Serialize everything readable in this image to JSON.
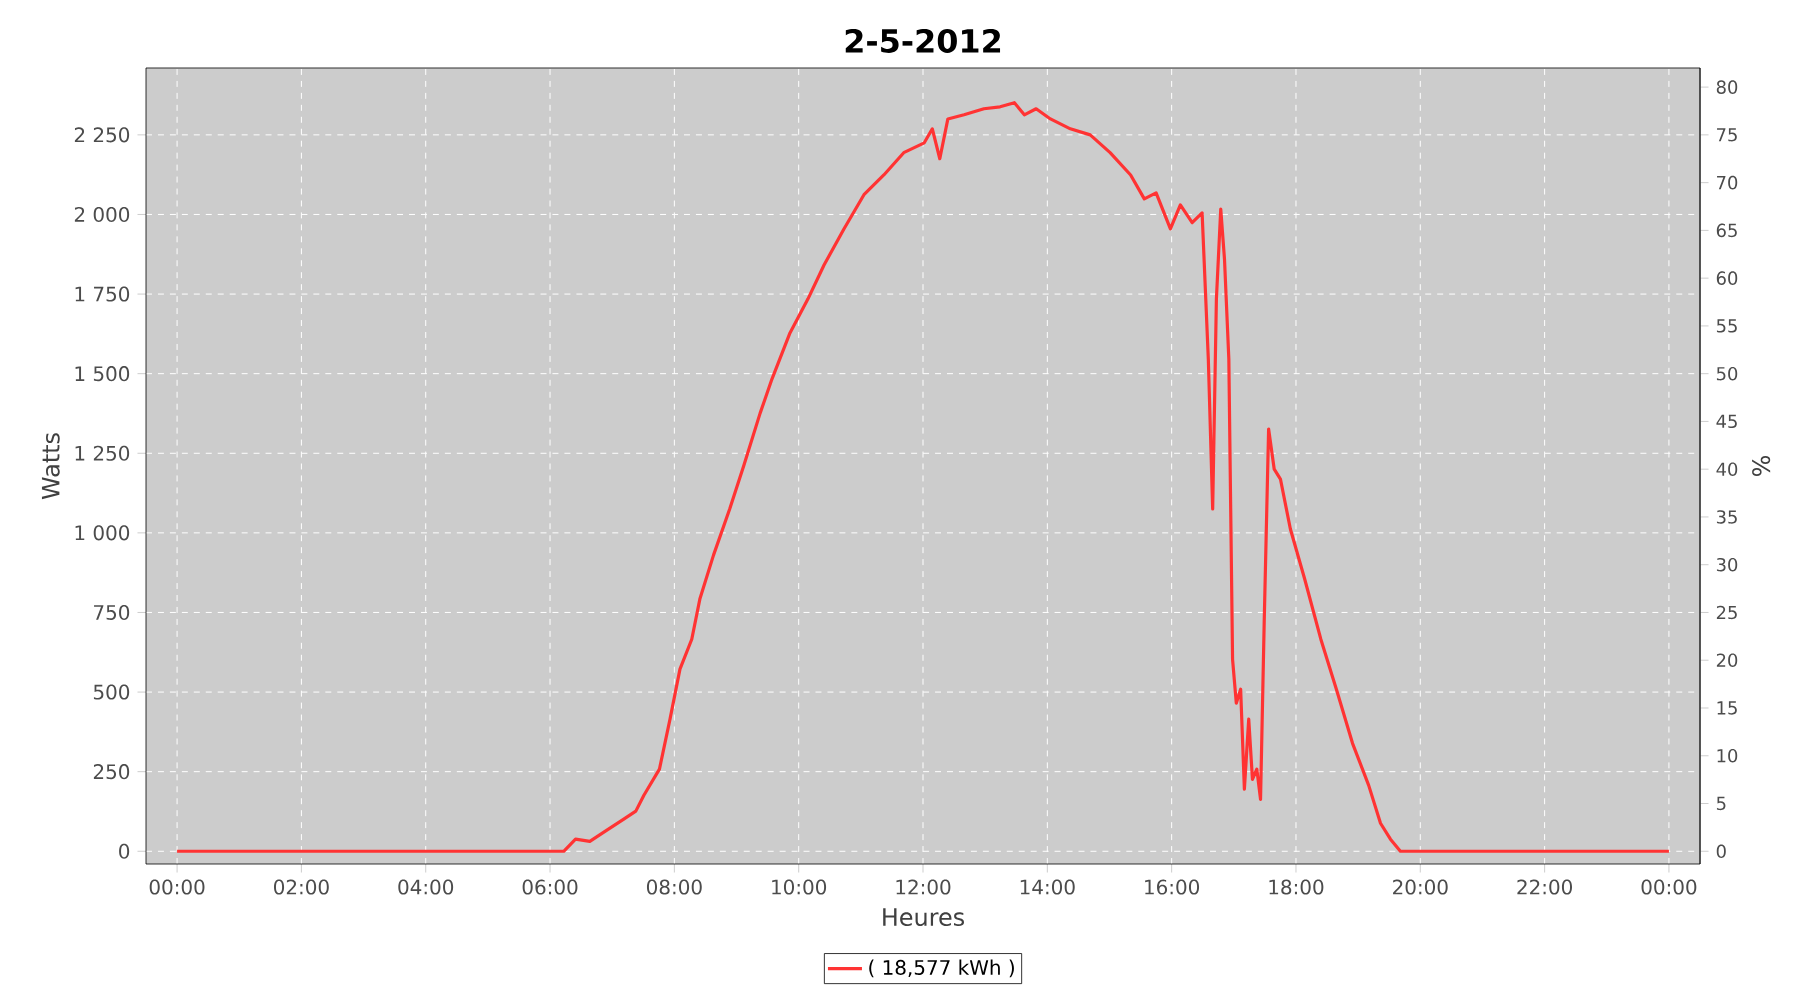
{
  "chart_data": {
    "type": "line",
    "title": "2-5-2012",
    "xlabel": "Heures",
    "ylabel": "Watts",
    "y2label": "%",
    "xlim": [
      -0.5,
      24.5
    ],
    "xticks": [
      {
        "value": 0,
        "label": "00:00"
      },
      {
        "value": 2,
        "label": "02:00"
      },
      {
        "value": 4,
        "label": "04:00"
      },
      {
        "value": 6,
        "label": "06:00"
      },
      {
        "value": 8,
        "label": "08:00"
      },
      {
        "value": 10,
        "label": "10:00"
      },
      {
        "value": 12,
        "label": "12:00"
      },
      {
        "value": 14,
        "label": "14:00"
      },
      {
        "value": 16,
        "label": "16:00"
      },
      {
        "value": 18,
        "label": "18:00"
      },
      {
        "value": 20,
        "label": "20:00"
      },
      {
        "value": 22,
        "label": "22:00"
      },
      {
        "value": 24,
        "label": "00:00"
      }
    ],
    "ylim": [
      -40,
      2460
    ],
    "yticks": [
      0,
      250,
      500,
      750,
      {
        "value": 1000,
        "label": "1 000"
      },
      {
        "value": 1250,
        "label": "1 250"
      },
      {
        "value": 1500,
        "label": "1 500"
      },
      {
        "value": 1750,
        "label": "1 750"
      },
      {
        "value": 2000,
        "label": "2 000"
      },
      {
        "value": 2250,
        "label": "2 250"
      }
    ],
    "y2lim": [
      -1.333,
      82
    ],
    "y2ticks": [
      0,
      5,
      10,
      15,
      20,
      25,
      30,
      35,
      40,
      45,
      50,
      55,
      60,
      65,
      70,
      75,
      80
    ],
    "grid": true,
    "legend": "bottom",
    "marker": "none",
    "line_style": "solid",
    "series": [
      {
        "name": "( 18,577 kWh )",
        "color": "#ff3333",
        "x": [
          0,
          6.22,
          6.41,
          6.64,
          6.89,
          7.18,
          7.38,
          7.51,
          7.76,
          7.93,
          8.09,
          8.28,
          8.41,
          8.63,
          8.89,
          9.12,
          9.38,
          9.57,
          9.86,
          10.15,
          10.41,
          10.73,
          11.05,
          11.37,
          11.69,
          12.02,
          12.15,
          12.27,
          12.4,
          12.66,
          12.98,
          13.24,
          13.47,
          13.63,
          13.82,
          14.05,
          14.37,
          14.69,
          15.01,
          15.34,
          15.56,
          15.75,
          15.98,
          16.14,
          16.33,
          16.49,
          16.59,
          16.66,
          16.72,
          16.79,
          16.85,
          16.92,
          16.98,
          17.04,
          17.11,
          17.17,
          17.24,
          17.3,
          17.37,
          17.43,
          17.49,
          17.56,
          17.65,
          17.75,
          17.91,
          18.14,
          18.4,
          18.65,
          18.91,
          19.17,
          19.36,
          19.52,
          19.68,
          24
        ],
        "values": [
          0,
          0,
          38,
          31,
          63,
          100,
          126,
          176,
          258,
          415,
          572,
          666,
          792,
          930,
          1075,
          1213,
          1376,
          1483,
          1628,
          1735,
          1842,
          1955,
          2062,
          2124,
          2194,
          2225,
          2269,
          2175,
          2300,
          2313,
          2332,
          2338,
          2351,
          2313,
          2332,
          2300,
          2269,
          2250,
          2194,
          2124,
          2049,
          2068,
          1955,
          2030,
          1974,
          2005,
          1546,
          1075,
          1735,
          2017,
          1860,
          1546,
          603,
          465,
          509,
          195,
          415,
          226,
          258,
          163,
          729,
          1326,
          1200,
          1169,
          1012,
          855,
          666,
          509,
          339,
          207,
          88,
          38,
          0,
          0
        ]
      }
    ]
  }
}
